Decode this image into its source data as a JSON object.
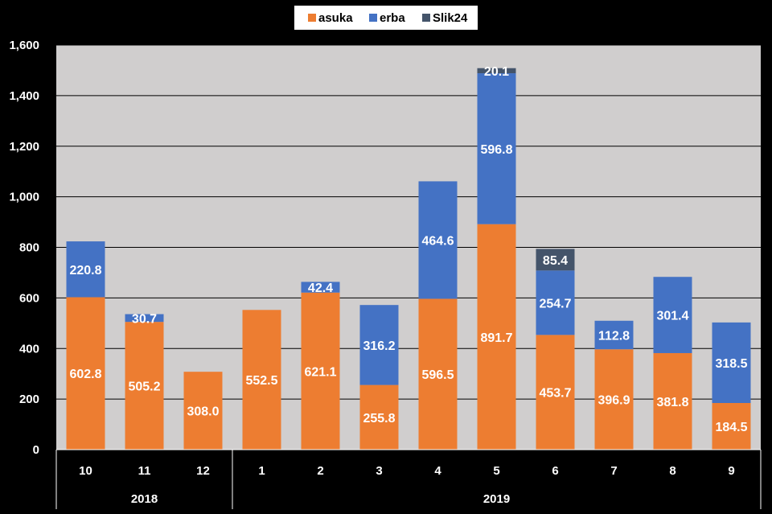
{
  "chart_data": {
    "type": "bar",
    "stacked": true,
    "categories": [
      "10",
      "11",
      "12",
      "1",
      "2",
      "3",
      "4",
      "5",
      "6",
      "7",
      "8",
      "9"
    ],
    "groups": [
      {
        "label": "2018",
        "categories": [
          "10",
          "11",
          "12"
        ]
      },
      {
        "label": "2019",
        "categories": [
          "1",
          "2",
          "3",
          "4",
          "5",
          "6",
          "7",
          "8",
          "9"
        ]
      }
    ],
    "series": [
      {
        "name": "asuka",
        "color": "#ED7D31",
        "values": [
          602.8,
          505.2,
          308.0,
          552.5,
          621.1,
          255.8,
          596.5,
          891.7,
          453.7,
          396.9,
          381.8,
          184.5
        ],
        "labels": [
          "602.8",
          "505.2",
          "308.0",
          "552.5",
          "621.1",
          "255.8",
          "596.5",
          "891.7",
          "453.7",
          "396.9",
          "381.8",
          "184.5"
        ]
      },
      {
        "name": "erba",
        "color": "#4472C4",
        "values": [
          220.8,
          30.7,
          0,
          0,
          42.4,
          316.2,
          464.6,
          596.8,
          254.7,
          112.8,
          301.4,
          318.5
        ],
        "labels": [
          "220.8",
          "30.7",
          "",
          "",
          "42.4",
          "316.2",
          "464.6",
          "596.8",
          "254.7",
          "112.8",
          "301.4",
          "318.5"
        ]
      },
      {
        "name": "Slik24",
        "color": "#44546A",
        "values": [
          0,
          0,
          0,
          0,
          0,
          0,
          0,
          20.1,
          85.4,
          0,
          0,
          0
        ],
        "labels": [
          "",
          "",
          "",
          "",
          "",
          "",
          "",
          "20.1",
          "85.4",
          "",
          "",
          ""
        ]
      }
    ],
    "yticks": [
      "0",
      "200",
      "400",
      "600",
      "800",
      "1,000",
      "1,200",
      "1,400",
      "1,600"
    ],
    "ylim": [
      0,
      1600
    ],
    "grid": true,
    "legend": "top-center",
    "title": "",
    "xlabel": "",
    "ylabel": ""
  }
}
